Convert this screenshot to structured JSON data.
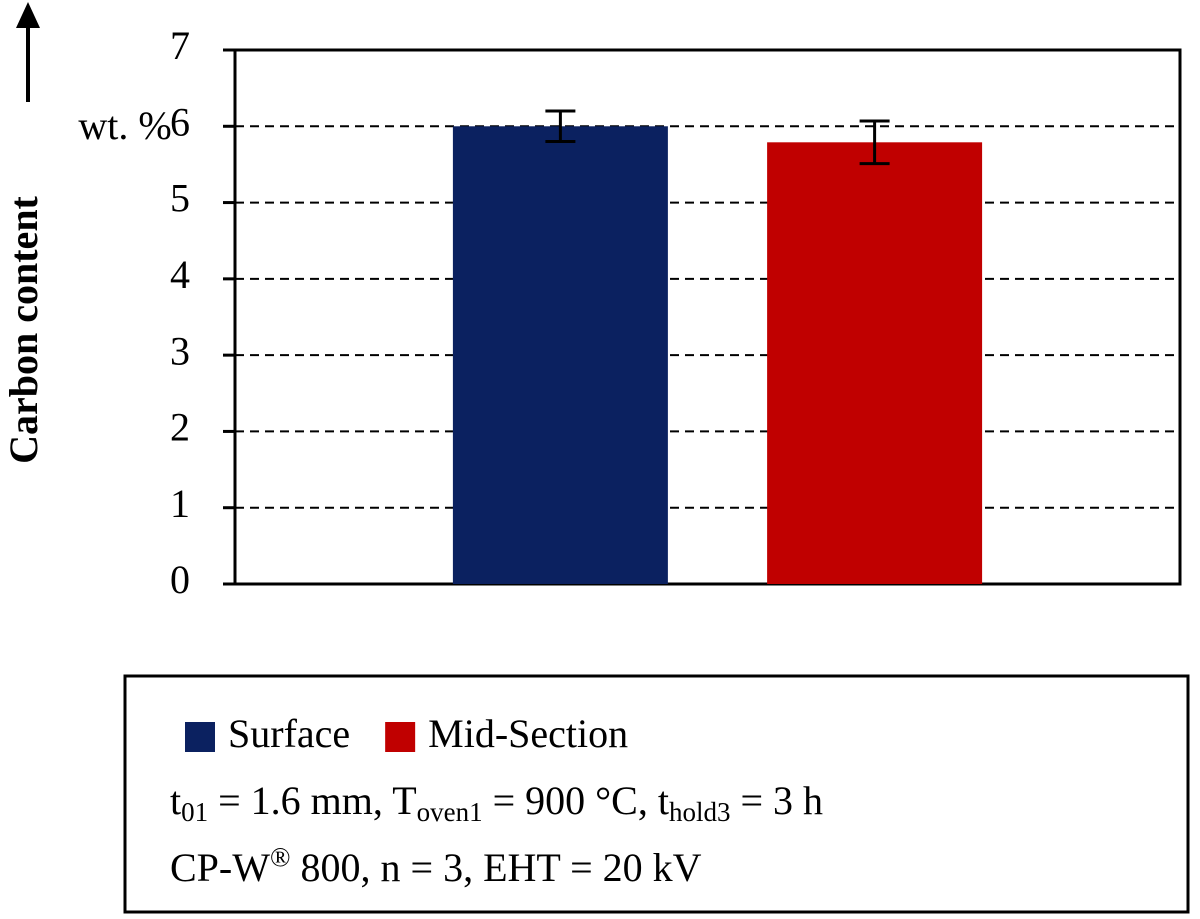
{
  "chart_data": {
    "type": "bar",
    "y_label": "Carbon content",
    "y_unit": "wt. %",
    "categories": [
      null
    ],
    "series": [
      {
        "name": "Surface",
        "color": "#0b2160",
        "values": [
          6.0
        ],
        "errors": [
          0.2
        ]
      },
      {
        "name": "Mid-Section",
        "color": "#c00000",
        "values": [
          5.79
        ],
        "errors": [
          0.28
        ]
      }
    ],
    "ylim": [
      0,
      7
    ],
    "yticks": [
      0,
      1,
      2,
      3,
      4,
      5,
      6,
      7
    ],
    "grid": true,
    "notes": [
      [
        {
          "text": "t"
        },
        {
          "sub": "01"
        },
        {
          "text": " = 1.6 mm, T"
        },
        {
          "sub": "oven1"
        },
        {
          "text": " = 900 °C, t"
        },
        {
          "sub": "hold3"
        },
        {
          "text": " = 3 h"
        }
      ],
      [
        {
          "text": "CP-W"
        },
        {
          "sup": "®"
        },
        {
          "text": " 800, n = 3, EHT = 20 kV"
        }
      ]
    ]
  }
}
